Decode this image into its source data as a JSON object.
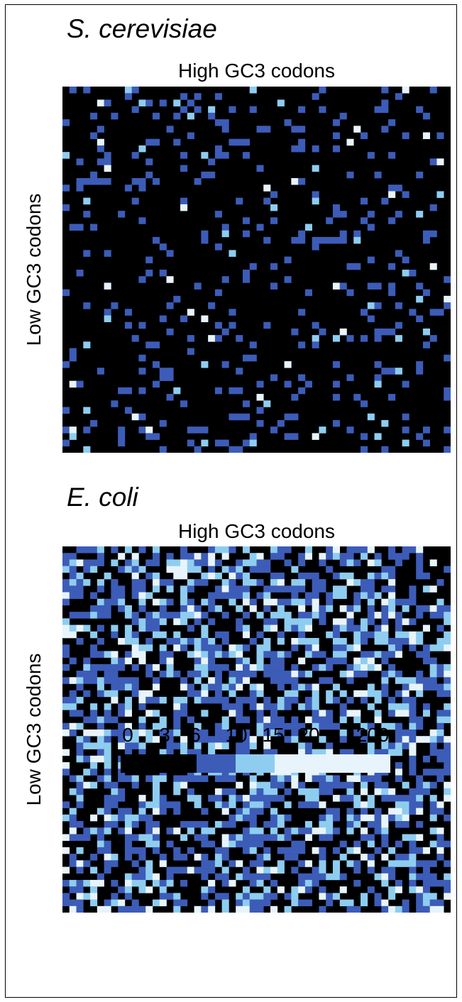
{
  "chart_data": [
    {
      "type": "heatmap",
      "title": "S. cerevisiae",
      "xlabel": "High GC3 codons",
      "ylabel": "Low GC3 codons",
      "grid_size": 56,
      "seed": 7,
      "value_fractions": [
        0.86,
        0.115,
        0.018,
        0.007
      ]
    },
    {
      "type": "heatmap",
      "title": "E. coli",
      "xlabel": "High GC3 codons",
      "ylabel": "Low GC3 codons",
      "grid_size": 56,
      "seed": 23,
      "value_fractions": [
        0.45,
        0.3,
        0.16,
        0.09
      ]
    }
  ],
  "colorbar": {
    "ticks": [
      "0",
      "3",
      "6",
      "10",
      "15",
      "20",
      "200"
    ],
    "bins": [
      {
        "from": 0,
        "to": 6,
        "color": "#000000"
      },
      {
        "from": 6,
        "to": 10,
        "color": "#3c5cb8"
      },
      {
        "from": 10,
        "to": 15,
        "color": "#8ecdf0"
      },
      {
        "from": 15,
        "to": 200,
        "color": "#e8f4fb"
      }
    ]
  }
}
